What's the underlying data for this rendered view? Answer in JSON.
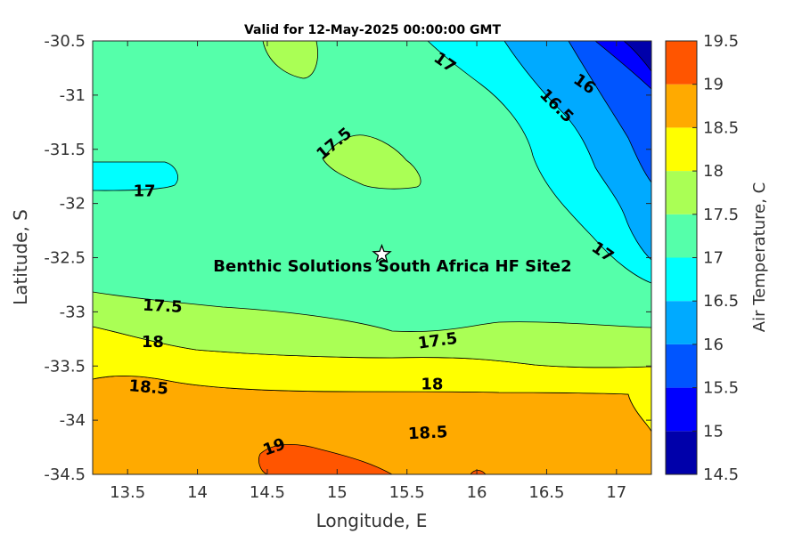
{
  "chart_data": {
    "type": "contour",
    "title": "Valid for 12-May-2025 00:00:00 GMT",
    "xlabel": "Longitude, E",
    "ylabel": "Latitude, S",
    "xlim": [
      13.25,
      17.25
    ],
    "ylim": [
      -34.5,
      -30.5
    ],
    "xticks": [
      "13.5",
      "14",
      "14.5",
      "15",
      "15.5",
      "16",
      "16.5",
      "17"
    ],
    "yticks": [
      "-30.5",
      "-31",
      "-31.5",
      "-32",
      "-32.5",
      "-33",
      "-33.5",
      "-34",
      "-34.5"
    ],
    "colorbar": {
      "label": "Air Temperature, C",
      "levels": [
        14.5,
        15,
        15.5,
        16,
        16.5,
        17,
        17.5,
        18,
        18.5,
        19,
        19.5
      ],
      "level_labels": [
        "14.5",
        "15",
        "15.5",
        "16",
        "16.5",
        "17",
        "17.5",
        "18",
        "18.5",
        "19",
        "19.5"
      ],
      "colors": [
        "#0000AA",
        "#0000FF",
        "#0055FF",
        "#00AAFF",
        "#00FFFF",
        "#55FFAA",
        "#AAFF55",
        "#FFFF00",
        "#FFAA00",
        "#FF5500",
        "#FF0000"
      ]
    },
    "contour_labels": [
      {
        "text": "17",
        "lon": 15.77,
        "lat": -30.7,
        "angle": 35
      },
      {
        "text": "16",
        "lon": 16.77,
        "lat": -30.9,
        "angle": 35
      },
      {
        "text": "16.5",
        "lon": 16.57,
        "lat": -31.1,
        "angle": 45
      },
      {
        "text": "17.5",
        "lon": 14.98,
        "lat": -31.45,
        "angle": -40
      },
      {
        "text": "17",
        "lon": 13.62,
        "lat": -31.89,
        "angle": 0
      },
      {
        "text": "17",
        "lon": 16.9,
        "lat": -32.45,
        "angle": 35
      },
      {
        "text": "17.5",
        "lon": 13.75,
        "lat": -32.95,
        "angle": 3
      },
      {
        "text": "18",
        "lon": 13.68,
        "lat": -33.28,
        "angle": 0
      },
      {
        "text": "17.5",
        "lon": 15.72,
        "lat": -33.27,
        "angle": -8
      },
      {
        "text": "18.5",
        "lon": 13.65,
        "lat": -33.7,
        "angle": 5
      },
      {
        "text": "18",
        "lon": 15.68,
        "lat": -33.67,
        "angle": 0
      },
      {
        "text": "18.5",
        "lon": 15.65,
        "lat": -34.12,
        "angle": -3
      },
      {
        "text": "19",
        "lon": 14.55,
        "lat": -34.25,
        "angle": -20
      }
    ],
    "site": {
      "name": "Benthic Solutions South Africa HF Site2",
      "lon": 15.32,
      "lat": -32.47
    }
  }
}
